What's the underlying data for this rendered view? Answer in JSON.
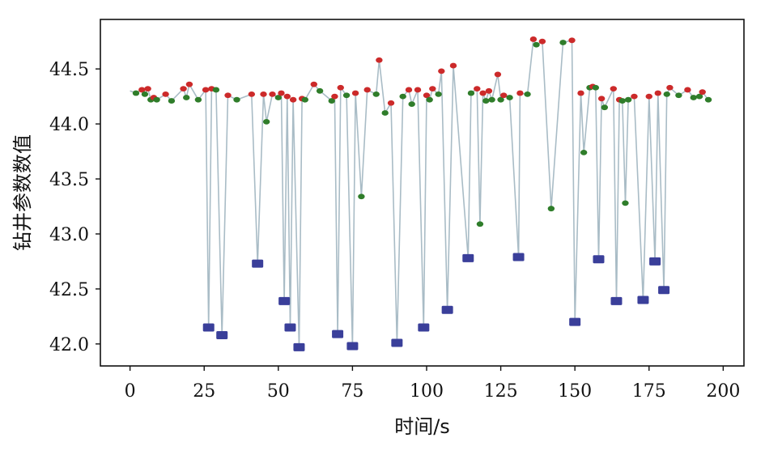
{
  "chart_data": {
    "type": "line",
    "xlabel": "时间/s",
    "ylabel": "钻井参数数值",
    "xlim": [
      -10,
      207
    ],
    "ylim": [
      41.8,
      44.95
    ],
    "xticks": [
      0,
      25,
      50,
      75,
      100,
      125,
      150,
      175,
      200
    ],
    "yticks": [
      42.0,
      42.5,
      43.0,
      43.5,
      44.0,
      44.5
    ],
    "ytick_labels": [
      "42.0",
      "42.5",
      "43.0",
      "43.5",
      "44.0",
      "44.5"
    ],
    "grid": false,
    "colors": {
      "line": "#a9bcc6",
      "peak_marker": "#cc2a2a",
      "trough_marker": "#2f7d2a",
      "outlier_marker": "#3a3f9a",
      "axis": "#111111"
    },
    "series": [
      {
        "values": [
          [
            0,
            44.3
          ],
          [
            2,
            44.28
          ],
          [
            4,
            44.31
          ],
          [
            5,
            44.27
          ],
          [
            6,
            44.32
          ],
          [
            7,
            44.22
          ],
          [
            8,
            44.24
          ],
          [
            9,
            44.22
          ],
          [
            12,
            44.27
          ],
          [
            14,
            44.21
          ],
          [
            18,
            44.32
          ],
          [
            19,
            44.24
          ],
          [
            20,
            44.36
          ],
          [
            23,
            44.22
          ],
          [
            25.5,
            44.31
          ],
          [
            26.5,
            42.15
          ],
          [
            27.5,
            44.32
          ],
          [
            29,
            44.31
          ],
          [
            31,
            42.08
          ],
          [
            33,
            44.26
          ],
          [
            36,
            44.22
          ],
          [
            41,
            44.27
          ],
          [
            43,
            42.73
          ],
          [
            45,
            44.27
          ],
          [
            46,
            44.02
          ],
          [
            48,
            44.27
          ],
          [
            50,
            44.24
          ],
          [
            51,
            44.28
          ],
          [
            52,
            42.39
          ],
          [
            53,
            44.25
          ],
          [
            54,
            42.15
          ],
          [
            55,
            44.22
          ],
          [
            57,
            41.97
          ],
          [
            58,
            44.23
          ],
          [
            59,
            44.22
          ],
          [
            62,
            44.36
          ],
          [
            64,
            44.3
          ],
          [
            68,
            44.21
          ],
          [
            69,
            44.25
          ],
          [
            70,
            42.09
          ],
          [
            71,
            44.33
          ],
          [
            73,
            44.26
          ],
          [
            75,
            41.98
          ],
          [
            76,
            44.28
          ],
          [
            78,
            43.34
          ],
          [
            80,
            44.31
          ],
          [
            83,
            44.27
          ],
          [
            84,
            44.58
          ],
          [
            86,
            44.1
          ],
          [
            88,
            44.19
          ],
          [
            90,
            42.01
          ],
          [
            92,
            44.25
          ],
          [
            94,
            44.31
          ],
          [
            95,
            44.18
          ],
          [
            97,
            44.31
          ],
          [
            99,
            42.15
          ],
          [
            100,
            44.26
          ],
          [
            101,
            44.22
          ],
          [
            102,
            44.32
          ],
          [
            104,
            44.27
          ],
          [
            105,
            44.48
          ],
          [
            107,
            42.31
          ],
          [
            109,
            44.53
          ],
          [
            114,
            42.78
          ],
          [
            115,
            44.28
          ],
          [
            117,
            44.32
          ],
          [
            118,
            43.09
          ],
          [
            119,
            44.28
          ],
          [
            120,
            44.21
          ],
          [
            121,
            44.3
          ],
          [
            122,
            44.22
          ],
          [
            124,
            44.45
          ],
          [
            125,
            44.22
          ],
          [
            126,
            44.26
          ],
          [
            128,
            44.24
          ],
          [
            131,
            42.79
          ],
          [
            131.5,
            44.28
          ],
          [
            134,
            44.27
          ],
          [
            136,
            44.77
          ],
          [
            137,
            44.72
          ],
          [
            139,
            44.75
          ],
          [
            142,
            43.23
          ],
          [
            146,
            44.74
          ],
          [
            149,
            44.76
          ],
          [
            150,
            42.2
          ],
          [
            152,
            44.28
          ],
          [
            153,
            43.74
          ],
          [
            155,
            44.33
          ],
          [
            156,
            44.34
          ],
          [
            157,
            44.33
          ],
          [
            158,
            42.77
          ],
          [
            159,
            44.23
          ],
          [
            160,
            44.15
          ],
          [
            163,
            44.32
          ],
          [
            164,
            42.39
          ],
          [
            165,
            44.22
          ],
          [
            166,
            44.21
          ],
          [
            167,
            43.28
          ],
          [
            168,
            44.22
          ],
          [
            170,
            44.25
          ],
          [
            173,
            42.4
          ],
          [
            175,
            44.25
          ],
          [
            177,
            42.75
          ],
          [
            178,
            44.28
          ],
          [
            180,
            42.49
          ],
          [
            181,
            44.27
          ],
          [
            182,
            44.33
          ],
          [
            185,
            44.26
          ],
          [
            188,
            44.31
          ],
          [
            190,
            44.24
          ],
          [
            192,
            44.25
          ],
          [
            193,
            44.29
          ],
          [
            195,
            44.22
          ]
        ]
      }
    ]
  }
}
